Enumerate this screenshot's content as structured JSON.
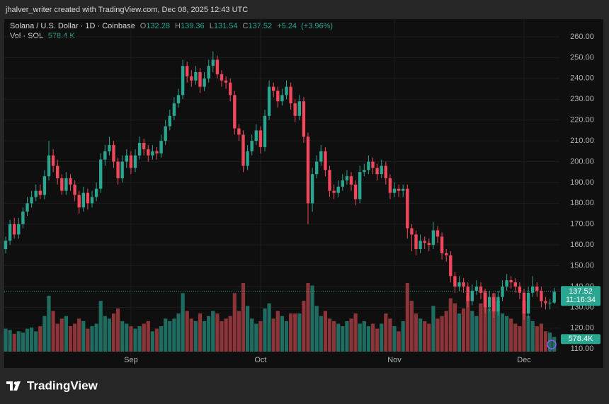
{
  "header": {
    "text": "jhalver_writer created with TradingView.com, Dec 08, 2025 12:43 UTC"
  },
  "chart_data": {
    "type": "candlestick",
    "symbol": "Solana / U.S. Dollar · 1D · Coinbase",
    "readout": [
      {
        "label": "O",
        "value": 132.28
      },
      {
        "label": "H",
        "value": 139.36
      },
      {
        "label": "L",
        "value": 131.54
      },
      {
        "label": "C",
        "value": 137.52
      }
    ],
    "change": {
      "value": 5.24,
      "label": "+5.24"
    },
    "change_percent": {
      "value": 3.96,
      "label": "(+3.96%)"
    },
    "volume_label": "Vol · SOL",
    "volume_readout": {
      "value": 578.4,
      "label": "578.4 K"
    },
    "categories": [
      null,
      null,
      null,
      null,
      null,
      null,
      null,
      null,
      null,
      null,
      null,
      null,
      null,
      null,
      null,
      null,
      null,
      null,
      null,
      null,
      null,
      null,
      null,
      null,
      null,
      null,
      null,
      null,
      null,
      "Sep",
      null,
      null,
      null,
      null,
      null,
      null,
      null,
      null,
      null,
      null,
      null,
      null,
      null,
      null,
      null,
      null,
      null,
      null,
      null,
      null,
      null,
      null,
      null,
      null,
      null,
      null,
      null,
      null,
      null,
      "Oct",
      null,
      null,
      null,
      null,
      null,
      null,
      null,
      null,
      null,
      null,
      null,
      null,
      null,
      null,
      null,
      null,
      null,
      null,
      null,
      null,
      null,
      null,
      null,
      null,
      null,
      null,
      null,
      null,
      null,
      null,
      "Nov",
      null,
      null,
      null,
      null,
      null,
      null,
      null,
      null,
      null,
      null,
      null,
      null,
      null,
      null,
      null,
      null,
      null,
      null,
      null,
      null,
      null,
      null,
      null,
      null,
      null,
      null,
      null,
      null,
      null,
      "Dec",
      null,
      null,
      null,
      null,
      null,
      null,
      null
    ],
    "open": [
      158,
      162,
      170,
      165,
      170,
      176,
      180,
      183,
      186,
      184,
      193,
      203,
      198,
      192,
      186,
      192,
      189,
      184,
      178,
      185,
      180,
      183,
      187,
      201,
      205,
      208,
      200,
      192,
      200,
      203,
      197,
      203,
      209,
      206,
      203,
      205,
      204,
      210,
      217,
      222,
      228,
      232,
      246,
      241,
      239,
      243,
      236,
      240,
      246,
      249,
      242,
      239,
      238,
      232,
      216,
      213,
      198,
      205,
      210,
      215,
      207,
      222,
      236,
      234,
      229,
      232,
      236,
      228,
      222,
      229,
      212,
      180,
      194,
      200,
      205,
      196,
      186,
      185,
      188,
      191,
      193,
      189,
      182,
      195,
      196,
      200,
      197,
      194,
      198,
      192,
      185,
      187,
      186,
      187,
      168,
      165,
      158,
      162,
      161,
      160,
      167,
      164,
      156,
      155,
      145,
      140,
      142,
      140,
      133,
      138,
      140,
      137,
      130,
      135,
      128,
      135,
      140,
      143,
      142,
      140,
      137,
      127,
      137,
      140,
      138,
      133,
      132,
      132.28
    ],
    "high": [
      164,
      172,
      173,
      173,
      178,
      183,
      186,
      189,
      189,
      196,
      210,
      206,
      201,
      194,
      195,
      194,
      191,
      186,
      188,
      187,
      186,
      190,
      204,
      208,
      212,
      210,
      202,
      203,
      206,
      205,
      206,
      212,
      211,
      208,
      208,
      207,
      213,
      220,
      225,
      231,
      235,
      249,
      248,
      244,
      246,
      245,
      243,
      249,
      253,
      251,
      244,
      241,
      240,
      234,
      218,
      215,
      208,
      213,
      218,
      217,
      225,
      239,
      238,
      236,
      235,
      239,
      238,
      230,
      232,
      231,
      214,
      197,
      203,
      208,
      207,
      198,
      189,
      191,
      194,
      196,
      195,
      191,
      198,
      199,
      203,
      202,
      199,
      201,
      200,
      194,
      190,
      189,
      189,
      189,
      170,
      167,
      165,
      164,
      163,
      171,
      169,
      166,
      158,
      157,
      147,
      145,
      144,
      142,
      141,
      143,
      142,
      139,
      138,
      137,
      138,
      143,
      146,
      145,
      144,
      142,
      139,
      140,
      145,
      142,
      140,
      135,
      134,
      139.36
    ],
    "low": [
      156,
      160,
      163,
      163,
      168,
      174,
      178,
      181,
      182,
      182,
      191,
      195,
      189,
      184,
      184,
      186,
      181,
      175,
      176,
      177,
      178,
      181,
      185,
      198,
      203,
      197,
      189,
      190,
      197,
      194,
      195,
      201,
      203,
      200,
      201,
      201,
      202,
      208,
      215,
      220,
      226,
      230,
      238,
      236,
      237,
      233,
      234,
      238,
      243,
      240,
      236,
      235,
      229,
      213,
      210,
      195,
      196,
      203,
      208,
      204,
      205,
      220,
      231,
      226,
      227,
      230,
      225,
      219,
      220,
      209,
      170,
      176,
      192,
      198,
      193,
      183,
      182,
      183,
      186,
      189,
      186,
      179,
      180,
      193,
      194,
      194,
      191,
      192,
      189,
      182,
      183,
      183,
      183,
      163,
      157,
      155,
      156,
      158,
      157,
      158,
      161,
      153,
      152,
      142,
      137,
      138,
      137,
      130,
      131,
      136,
      134,
      127,
      128,
      125,
      126,
      133,
      138,
      139,
      137,
      134,
      124,
      125,
      135,
      135,
      130,
      129,
      129,
      131.54
    ],
    "close": [
      162,
      170,
      165,
      170,
      176,
      180,
      183,
      186,
      184,
      193,
      203,
      198,
      192,
      186,
      192,
      189,
      184,
      178,
      185,
      180,
      183,
      187,
      201,
      205,
      208,
      200,
      192,
      200,
      203,
      197,
      203,
      209,
      206,
      203,
      205,
      204,
      210,
      217,
      222,
      228,
      232,
      246,
      241,
      239,
      243,
      236,
      240,
      246,
      249,
      242,
      239,
      238,
      232,
      216,
      213,
      198,
      205,
      210,
      215,
      207,
      222,
      236,
      234,
      229,
      232,
      236,
      228,
      222,
      229,
      212,
      180,
      194,
      200,
      205,
      196,
      186,
      185,
      188,
      191,
      193,
      189,
      182,
      195,
      196,
      200,
      197,
      194,
      198,
      192,
      185,
      187,
      186,
      187,
      168,
      165,
      158,
      162,
      161,
      160,
      167,
      164,
      156,
      155,
      145,
      140,
      142,
      140,
      133,
      138,
      140,
      137,
      130,
      135,
      128,
      135,
      140,
      143,
      142,
      140,
      137,
      127,
      137,
      140,
      138,
      133,
      132,
      132.28,
      137.52
    ],
    "volume": [
      900,
      850,
      700,
      800,
      750,
      900,
      950,
      800,
      1000,
      1400,
      2200,
      1600,
      1100,
      1300,
      1400,
      1000,
      1100,
      1300,
      1200,
      900,
      1000,
      1100,
      2000,
      1400,
      1300,
      1500,
      1700,
      1200,
      1100,
      1000,
      900,
      1000,
      1100,
      1200,
      800,
      900,
      1000,
      1300,
      1200,
      1300,
      1500,
      2300,
      1600,
      1300,
      1200,
      1500,
      1200,
      1400,
      1600,
      1500,
      1200,
      1300,
      1400,
      2300,
      1600,
      2700,
      1800,
      1300,
      1100,
      1200,
      1700,
      1900,
      1300,
      1600,
      1400,
      1200,
      1500,
      1500,
      1500,
      2000,
      2700,
      2600,
      1800,
      1400,
      1600,
      1300,
      1200,
      1100,
      1000,
      1200,
      1300,
      1500,
      1100,
      1200,
      1000,
      1100,
      900,
      1100,
      1500,
      1300,
      1000,
      800,
      1200,
      2700,
      2000,
      1500,
      1300,
      1200,
      1100,
      1800,
      1300,
      1400,
      1600,
      2100,
      1900,
      1500,
      1700,
      2200,
      1600,
      1400,
      1900,
      2400,
      1700,
      2300,
      2000,
      1500,
      1400,
      1300,
      1100,
      1000,
      2000,
      1400,
      1200,
      1000,
      1100,
      800,
      750,
      578.4
    ],
    "up_color": "#2aa58f",
    "down_color": "#f0475a",
    "volume_up_color": "#1f6d61",
    "volume_down_color": "#8c3538",
    "ylim": [
      106,
      268.5
    ],
    "yticks": [
      {
        "value": 110,
        "label": "110.00"
      },
      {
        "value": 120,
        "label": "120.00"
      },
      {
        "value": 130,
        "label": "130.00"
      },
      {
        "value": 140,
        "label": "140.00"
      },
      {
        "value": 150,
        "label": "150.00"
      },
      {
        "value": 160,
        "label": "160.00"
      },
      {
        "value": 170,
        "label": "170.00"
      },
      {
        "value": 180,
        "label": "180.00"
      },
      {
        "value": 190,
        "label": "190.00"
      },
      {
        "value": 200,
        "label": "200.00"
      },
      {
        "value": 210,
        "label": "210.00"
      },
      {
        "value": 220,
        "label": "220.00"
      },
      {
        "value": 230,
        "label": "230.00"
      },
      {
        "value": 240,
        "label": "240.00"
      },
      {
        "value": 250,
        "label": "250.00"
      },
      {
        "value": 260,
        "label": "260.00"
      }
    ],
    "grid": true,
    "countdown": "11:16:34",
    "volume_tag": {
      "value": 578.4,
      "label": "578.4K"
    }
  },
  "footer": {
    "logo": "TradingView"
  }
}
